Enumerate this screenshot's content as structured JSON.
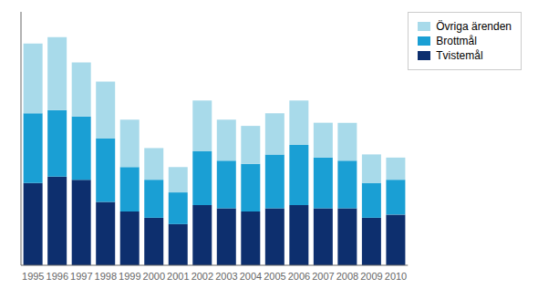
{
  "chart_data": {
    "type": "bar",
    "stacked": true,
    "categories": [
      "1995",
      "1996",
      "1997",
      "1998",
      "1999",
      "2000",
      "2001",
      "2002",
      "2003",
      "2004",
      "2005",
      "2006",
      "2007",
      "2008",
      "2009",
      "2010"
    ],
    "series": [
      {
        "name": "Tvistemål",
        "color": "#0d2f6e",
        "values": [
          130,
          140,
          135,
          100,
          85,
          75,
          65,
          95,
          90,
          85,
          90,
          95,
          90,
          90,
          75,
          80
        ]
      },
      {
        "name": "Brottmål",
        "color": "#1a9fd4",
        "values": [
          110,
          105,
          100,
          100,
          70,
          60,
          50,
          85,
          75,
          75,
          85,
          95,
          80,
          75,
          55,
          55
        ]
      },
      {
        "name": "Övriga ärenden",
        "color": "#a8daea",
        "values": [
          110,
          115,
          85,
          90,
          75,
          50,
          40,
          80,
          65,
          60,
          65,
          70,
          55,
          60,
          45,
          35
        ]
      }
    ],
    "ylim": [
      0,
      400
    ],
    "yticks": [],
    "tick_labels": "x",
    "grid": false,
    "legend": "upper right"
  }
}
